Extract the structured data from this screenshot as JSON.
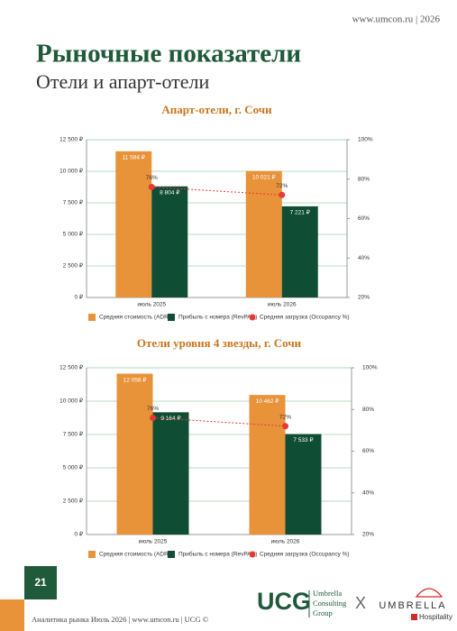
{
  "header": {
    "site": "www.umcon.ru | 2026",
    "title": "Рыночные показатели",
    "subtitle": "Отели и апарт-отели"
  },
  "chart_data": [
    {
      "type": "bar",
      "title": "Апарт-отели, г. Сочи",
      "categories": [
        "июль 2025",
        "июль 2026"
      ],
      "series": [
        {
          "name": "Средняя стоимость (ADR)",
          "color": "#e8923a",
          "values": [
            11584,
            10021
          ],
          "value_labels": [
            "11 584 ₽",
            "10 021 ₽"
          ]
        },
        {
          "name": "Прибыль с номера (RevPAR)",
          "color": "#0f4d34",
          "values": [
            8804,
            7221
          ],
          "value_labels": [
            "8 804 ₽",
            "7 221 ₽"
          ]
        },
        {
          "name": "Средняя загрузка (Occupancy %)",
          "color": "#e53935",
          "axis": "y2",
          "values": [
            76,
            72
          ],
          "value_labels": [
            "76%",
            "72%"
          ]
        }
      ],
      "ylim": [
        0,
        12500
      ],
      "yticks": [
        {
          "value": 0,
          "label": "0 ₽"
        },
        {
          "value": 2500,
          "label": "2 500 ₽"
        },
        {
          "value": 5000,
          "label": "5 000 ₽"
        },
        {
          "value": 7500,
          "label": "7 500 ₽"
        },
        {
          "value": 10000,
          "label": "10 000 ₽"
        },
        {
          "value": 12500,
          "label": "12 500 ₽"
        }
      ],
      "y2lim": [
        20,
        100
      ],
      "y2ticks": [
        {
          "value": 20,
          "label": "20%"
        },
        {
          "value": 40,
          "label": "40%"
        },
        {
          "value": 60,
          "label": "60%"
        },
        {
          "value": 80,
          "label": "80%"
        },
        {
          "value": 100,
          "label": "100%"
        }
      ],
      "grid": true,
      "legend": "bottom"
    },
    {
      "type": "bar",
      "title": "Отели уровня 4 звезды, г. Сочи",
      "categories": [
        "июль 2025",
        "июль 2026"
      ],
      "series": [
        {
          "name": "Средняя стоимость (ADR)",
          "color": "#e8923a",
          "values": [
            12058,
            10462
          ],
          "value_labels": [
            "12 058 ₽",
            "10 462 ₽"
          ]
        },
        {
          "name": "Прибыль с номера (RevPAR)",
          "color": "#0f4d34",
          "values": [
            9164,
            7533
          ],
          "value_labels": [
            "9 164 ₽",
            "7 533 ₽"
          ]
        },
        {
          "name": "Средняя загрузка (Occupancy %)",
          "color": "#e53935",
          "axis": "y2",
          "values": [
            76,
            72
          ],
          "value_labels": [
            "76%",
            "72%"
          ]
        }
      ],
      "ylim": [
        0,
        12500
      ],
      "yticks": [
        {
          "value": 0,
          "label": "0 ₽"
        },
        {
          "value": 2500,
          "label": "2 500 ₽"
        },
        {
          "value": 5000,
          "label": "5 000 ₽"
        },
        {
          "value": 7500,
          "label": "7 500 ₽"
        },
        {
          "value": 10000,
          "label": "10 000 ₽"
        },
        {
          "value": 12500,
          "label": "12 500 ₽"
        }
      ],
      "y2lim": [
        20,
        100
      ],
      "y2ticks": [
        {
          "value": 20,
          "label": "20%"
        },
        {
          "value": 40,
          "label": "40%"
        },
        {
          "value": 60,
          "label": "60%"
        },
        {
          "value": 80,
          "label": "80%"
        },
        {
          "value": 100,
          "label": "100%"
        }
      ],
      "grid": true,
      "legend": "bottom"
    }
  ],
  "footer": {
    "page": "21",
    "text": "Аналитика рынка Июль 2026 | www.umcon.ru | UCG ©",
    "logo": "UCG",
    "company": [
      "Umbrella",
      "Consulting",
      "Group"
    ],
    "cross": "X",
    "partner": "UMBRELLA",
    "partner_sub": "Hospitality"
  }
}
